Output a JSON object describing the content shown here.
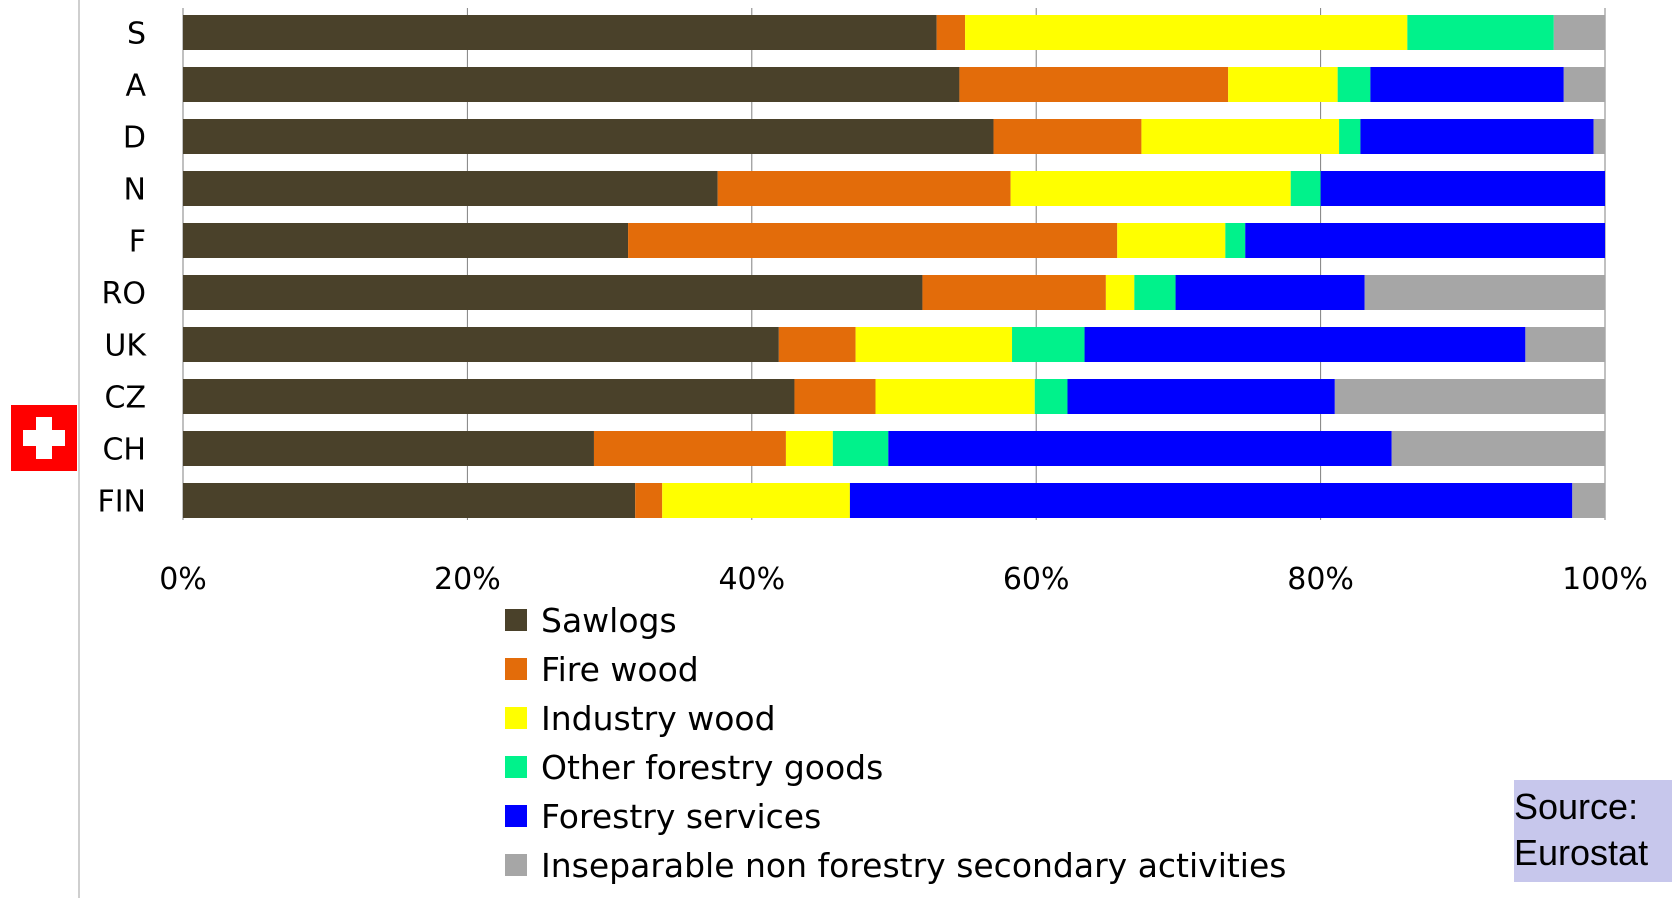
{
  "chart_data": {
    "type": "bar",
    "orientation": "horizontal",
    "stacked": "percent",
    "categories": [
      "S",
      "A",
      "D",
      "N",
      "F",
      "RO",
      "UK",
      "CZ",
      "CH",
      "FIN"
    ],
    "series": [
      {
        "name": "Sawlogs",
        "color": "#4a412a",
        "values": [
          53,
          54.6,
          57,
          37.6,
          31.3,
          52,
          41.9,
          43,
          28.9,
          31.8
        ]
      },
      {
        "name": "Fire wood",
        "color": "#e36c0a",
        "values": [
          2,
          18.9,
          10.4,
          20.6,
          34.4,
          12.9,
          5.4,
          5.7,
          13.5,
          1.9
        ]
      },
      {
        "name": "Industry wood",
        "color": "#ffff00",
        "values": [
          31.1,
          7.7,
          13.9,
          19.7,
          7.6,
          2,
          11,
          11.2,
          3.3,
          13.2
        ]
      },
      {
        "name": "Other forestry goods",
        "color": "#00f28b",
        "values": [
          10.3,
          2.3,
          1.5,
          2.1,
          1.4,
          2.9,
          5.1,
          2.3,
          3.9,
          0
        ]
      },
      {
        "name": "Forestry services",
        "color": "#0000ff",
        "values": [
          0,
          13.6,
          16.4,
          20,
          25.3,
          13.3,
          31,
          18.8,
          35.4,
          50.8
        ]
      },
      {
        "name": "Inseparable non forestry secondary activities",
        "color": "#a6a6a6",
        "values": [
          3.6,
          2.9,
          0.8,
          0,
          0,
          16.9,
          5.6,
          19,
          15,
          2.3
        ]
      }
    ],
    "xlim": [
      0,
      100
    ],
    "xticks": [
      "0%",
      "20%",
      "40%",
      "60%",
      "80%",
      "100%"
    ],
    "grid": true,
    "legend_position": "bottom",
    "highlight_category": "CH"
  },
  "source": {
    "line1": "Source:",
    "line2": "Eurostat"
  },
  "colors": {
    "grid": "#808080",
    "flag_red": "#ff0000",
    "flag_cross": "#ffffff"
  }
}
